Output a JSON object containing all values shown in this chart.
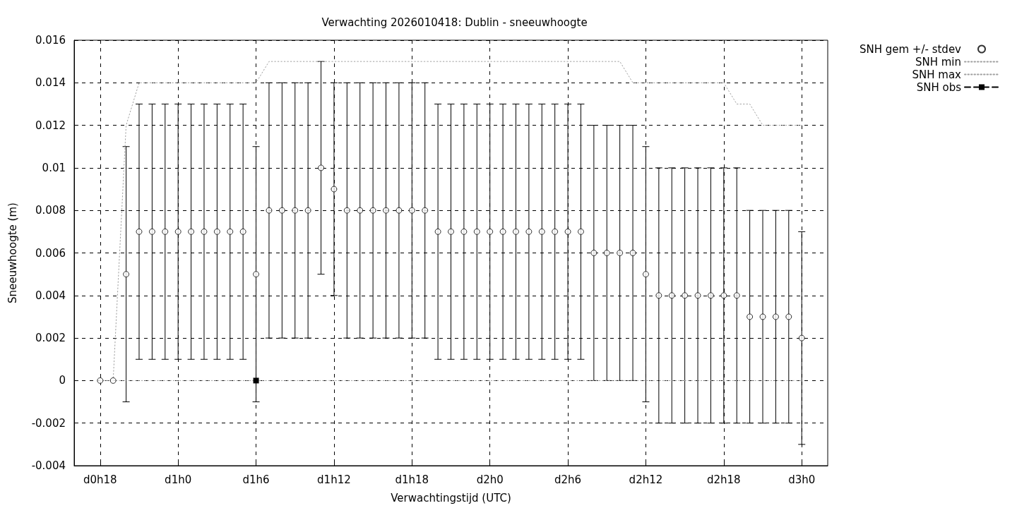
{
  "chart_data": {
    "type": "scatter",
    "title": "Verwachting 2026010418: Dublin - sneeuwhoogte",
    "xlabel": "Verwachtingstijd (UTC)",
    "ylabel": "Sneeuwhoogte (m)",
    "categories": [
      "d0h18",
      null,
      null,
      null,
      null,
      null,
      "d1h0",
      null,
      null,
      null,
      null,
      null,
      "d1h6",
      null,
      null,
      null,
      null,
      null,
      "d1h12",
      null,
      null,
      null,
      null,
      null,
      "d1h18",
      null,
      null,
      null,
      null,
      null,
      "d2h0",
      null,
      null,
      null,
      null,
      null,
      "d2h6",
      null,
      null,
      null,
      null,
      null,
      "d2h12",
      null,
      null,
      null,
      null,
      null,
      "d2h18",
      null,
      null,
      null,
      null,
      null,
      "d3h0"
    ],
    "ylim": [
      -0.004,
      0.016
    ],
    "yticks": [
      -0.004,
      -0.002,
      0,
      0.002,
      0.004,
      0.006,
      0.008,
      0.01,
      0.012,
      0.014,
      0.016
    ],
    "grid": true,
    "legend": "top right",
    "series": [
      {
        "name": "SNH gem +/- stdev",
        "type": "scatter",
        "color": "#000000",
        "marker": "circle",
        "values": [
          0,
          0,
          0.005,
          0.007,
          0.007,
          0.007,
          0.007,
          0.007,
          0.007,
          0.007,
          0.007,
          0.007,
          0.005,
          0.008,
          0.008,
          0.008,
          0.008,
          0.01,
          0.009,
          0.008,
          0.008,
          0.008,
          0.008,
          0.008,
          0.008,
          0.008,
          0.007,
          0.007,
          0.007,
          0.007,
          0.007,
          0.007,
          0.007,
          0.007,
          0.007,
          0.007,
          0.007,
          0.007,
          0.006,
          0.006,
          0.006,
          0.006,
          0.005,
          0.004,
          0.004,
          0.004,
          0.004,
          0.004,
          0.004,
          0.004,
          0.003,
          0.003,
          0.003,
          0.003,
          0.002
        ],
        "errors": [
          null,
          null,
          0.006,
          0.006,
          0.006,
          0.006,
          0.006,
          0.006,
          0.006,
          0.006,
          0.006,
          0.006,
          0.006,
          0.006,
          0.006,
          0.006,
          0.006,
          0.005,
          0.005,
          0.006,
          0.006,
          0.006,
          0.006,
          0.006,
          0.006,
          0.006,
          0.006,
          0.006,
          0.006,
          0.006,
          0.006,
          0.006,
          0.006,
          0.006,
          0.006,
          0.006,
          0.006,
          0.006,
          0.006,
          0.006,
          0.006,
          0.006,
          0.006,
          0.006,
          0.006,
          0.006,
          0.006,
          0.006,
          0.006,
          0.006,
          0.005,
          0.005,
          0.005,
          0.005,
          0.005
        ]
      },
      {
        "name": "SNH min",
        "type": "line",
        "color": "#a0a0a0",
        "marker": "none",
        "line_style": "dotted",
        "values": [
          0,
          0,
          0,
          0,
          0,
          0,
          0,
          0,
          0,
          0,
          0,
          0,
          0,
          0,
          0,
          0,
          0,
          0,
          0,
          0,
          0,
          0,
          0,
          0,
          0,
          0,
          0,
          0,
          0,
          0,
          0,
          0,
          0,
          0,
          0,
          0,
          0,
          0,
          0,
          0,
          0,
          0,
          0,
          0,
          0,
          0,
          0,
          0,
          0,
          0,
          0,
          0,
          0,
          0,
          0
        ]
      },
      {
        "name": "SNH max",
        "type": "line",
        "color": "#a0a0a0",
        "marker": "none",
        "line_style": "dotted",
        "values": [
          0,
          0,
          0.012,
          0.014,
          0.014,
          0.014,
          0.014,
          0.014,
          0.014,
          0.014,
          0.014,
          0.014,
          0.014,
          0.015,
          0.015,
          0.015,
          0.015,
          0.015,
          0.015,
          0.015,
          0.015,
          0.015,
          0.015,
          0.015,
          0.015,
          0.015,
          0.015,
          0.015,
          0.015,
          0.015,
          0.015,
          0.015,
          0.015,
          0.015,
          0.015,
          0.015,
          0.015,
          0.015,
          0.015,
          0.015,
          0.015,
          0.014,
          0.014,
          0.014,
          0.014,
          0.014,
          0.014,
          0.014,
          0.014,
          0.013,
          0.013,
          0.012,
          0.012,
          0.012,
          0.012
        ]
      },
      {
        "name": "SNH obs",
        "type": "line",
        "color": "#000000",
        "marker": "square",
        "line_style": "dashed",
        "values": [
          null,
          null,
          null,
          null,
          null,
          null,
          null,
          null,
          null,
          null,
          null,
          null,
          0,
          null,
          null,
          null,
          null,
          null,
          null,
          null,
          null,
          null,
          null,
          null,
          null,
          null,
          null,
          null,
          null,
          null,
          null,
          null,
          null,
          null,
          null,
          null,
          null,
          null,
          null,
          null,
          null,
          null,
          null,
          null,
          null,
          null,
          null,
          null,
          null,
          null,
          null,
          null,
          null,
          null,
          null
        ]
      }
    ]
  }
}
